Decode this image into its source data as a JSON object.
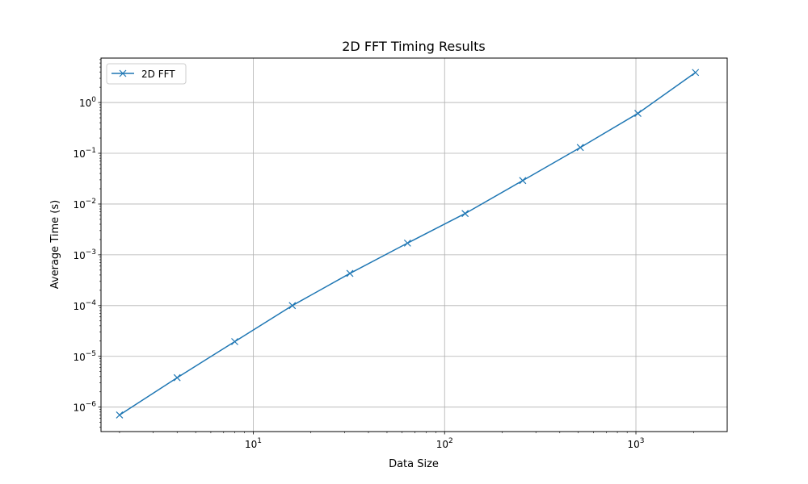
{
  "chart_data": {
    "type": "line",
    "title": "2D FFT Timing Results",
    "xlabel": "Data Size",
    "ylabel": "Average Time (s)",
    "xscale": "log",
    "yscale": "log",
    "xlim": [
      1.6,
      3000
    ],
    "ylim": [
      3.3e-07,
      7.5
    ],
    "xticks": [
      {
        "value": 10,
        "base": "10",
        "exp": "1"
      },
      {
        "value": 100,
        "base": "10",
        "exp": "2"
      },
      {
        "value": 1000,
        "base": "10",
        "exp": "3"
      }
    ],
    "yticks": [
      {
        "value": 1e-06,
        "base": "10",
        "exp": "−6"
      },
      {
        "value": 1e-05,
        "base": "10",
        "exp": "−5"
      },
      {
        "value": 0.0001,
        "base": "10",
        "exp": "−4"
      },
      {
        "value": 0.001,
        "base": "10",
        "exp": "−3"
      },
      {
        "value": 0.01,
        "base": "10",
        "exp": "−2"
      },
      {
        "value": 0.1,
        "base": "10",
        "exp": "−1"
      },
      {
        "value": 1,
        "base": "10",
        "exp": "0"
      }
    ],
    "grid": true,
    "legend_position": "top-left",
    "series": [
      {
        "name": "2D FFT",
        "color": "#1f77b4",
        "marker": "x",
        "x": [
          2,
          4,
          8,
          16,
          32,
          64,
          128,
          256,
          512,
          1024,
          2048
        ],
        "y": [
          7e-07,
          3.8e-06,
          1.95e-05,
          0.0001,
          0.00043,
          0.0017,
          0.0065,
          0.029,
          0.13,
          0.61,
          3.9
        ]
      }
    ]
  }
}
